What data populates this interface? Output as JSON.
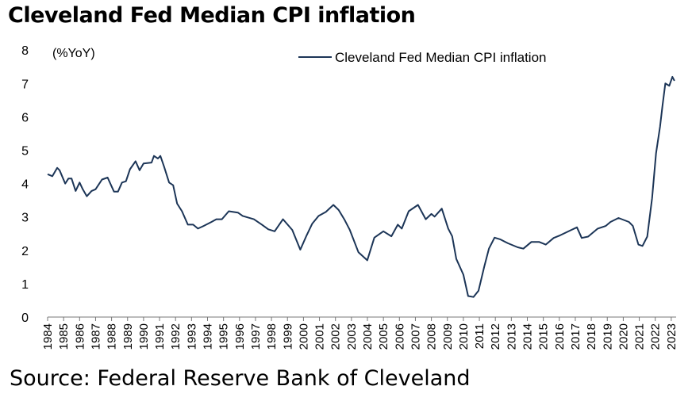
{
  "chart_data": {
    "type": "line",
    "title": "Cleveland Fed Median CPI inflation",
    "ylabel": "(%YoY)",
    "xlabel": "",
    "ylim": [
      0,
      8
    ],
    "xlim": [
      1984,
      2023.2
    ],
    "yticks": [
      "0",
      "1",
      "2",
      "3",
      "4",
      "5",
      "6",
      "7",
      "8"
    ],
    "xticks": [
      "1984",
      "1985",
      "1986",
      "1987",
      "1988",
      "1989",
      "1990",
      "1991",
      "1992",
      "1993",
      "1994",
      "1995",
      "1996",
      "1997",
      "1998",
      "1999",
      "2000",
      "2001",
      "2002",
      "2003",
      "2004",
      "2005",
      "2006",
      "2007",
      "2008",
      "2009",
      "2010",
      "2011",
      "2012",
      "2013",
      "2014",
      "2015",
      "2016",
      "2017",
      "2018",
      "2019",
      "2020",
      "2021",
      "2022",
      "2023"
    ],
    "legend": "top-right",
    "grid": false,
    "series": [
      {
        "name": "Cleveland Fed Median CPI inflation",
        "color": "#1c3557",
        "points": [
          [
            1984.0,
            4.28
          ],
          [
            1984.3,
            4.22
          ],
          [
            1984.6,
            4.47
          ],
          [
            1984.75,
            4.4
          ],
          [
            1985.1,
            4.0
          ],
          [
            1985.3,
            4.15
          ],
          [
            1985.5,
            4.15
          ],
          [
            1985.75,
            3.78
          ],
          [
            1986.0,
            4.03
          ],
          [
            1986.2,
            3.83
          ],
          [
            1986.45,
            3.62
          ],
          [
            1986.75,
            3.78
          ],
          [
            1987.0,
            3.83
          ],
          [
            1987.4,
            4.12
          ],
          [
            1987.75,
            4.18
          ],
          [
            1988.15,
            3.76
          ],
          [
            1988.4,
            3.76
          ],
          [
            1988.65,
            4.03
          ],
          [
            1988.9,
            4.07
          ],
          [
            1989.15,
            4.43
          ],
          [
            1989.5,
            4.67
          ],
          [
            1989.75,
            4.4
          ],
          [
            1990.0,
            4.6
          ],
          [
            1990.5,
            4.63
          ],
          [
            1990.65,
            4.83
          ],
          [
            1990.9,
            4.75
          ],
          [
            1991.05,
            4.83
          ],
          [
            1991.28,
            4.51
          ],
          [
            1991.6,
            4.03
          ],
          [
            1991.85,
            3.95
          ],
          [
            1992.1,
            3.4
          ],
          [
            1992.4,
            3.17
          ],
          [
            1992.77,
            2.77
          ],
          [
            1993.1,
            2.77
          ],
          [
            1993.4,
            2.65
          ],
          [
            1993.75,
            2.73
          ],
          [
            1994.25,
            2.85
          ],
          [
            1994.55,
            2.93
          ],
          [
            1994.9,
            2.93
          ],
          [
            1995.33,
            3.17
          ],
          [
            1995.9,
            3.13
          ],
          [
            1996.2,
            3.03
          ],
          [
            1996.9,
            2.93
          ],
          [
            1997.4,
            2.77
          ],
          [
            1997.8,
            2.63
          ],
          [
            1998.2,
            2.57
          ],
          [
            1998.72,
            2.93
          ],
          [
            1999.3,
            2.61
          ],
          [
            1999.8,
            2.02
          ],
          [
            2000.2,
            2.45
          ],
          [
            2000.55,
            2.8
          ],
          [
            2000.95,
            3.03
          ],
          [
            2001.4,
            3.15
          ],
          [
            2001.87,
            3.36
          ],
          [
            2002.2,
            3.21
          ],
          [
            2002.55,
            2.93
          ],
          [
            2002.9,
            2.61
          ],
          [
            2003.44,
            1.94
          ],
          [
            2003.99,
            1.7
          ],
          [
            2004.43,
            2.38
          ],
          [
            2005.0,
            2.57
          ],
          [
            2005.5,
            2.42
          ],
          [
            2005.9,
            2.77
          ],
          [
            2006.15,
            2.65
          ],
          [
            2006.58,
            3.17
          ],
          [
            2007.16,
            3.36
          ],
          [
            2007.65,
            2.93
          ],
          [
            2008.0,
            3.09
          ],
          [
            2008.2,
            3.01
          ],
          [
            2008.65,
            3.25
          ],
          [
            2009.05,
            2.65
          ],
          [
            2009.3,
            2.42
          ],
          [
            2009.56,
            1.74
          ],
          [
            2010.0,
            1.27
          ],
          [
            2010.3,
            0.63
          ],
          [
            2010.63,
            0.6
          ],
          [
            2010.95,
            0.79
          ],
          [
            2011.3,
            1.5
          ],
          [
            2011.6,
            2.05
          ],
          [
            2011.95,
            2.38
          ],
          [
            2012.3,
            2.33
          ],
          [
            2012.8,
            2.21
          ],
          [
            2013.4,
            2.09
          ],
          [
            2013.75,
            2.05
          ],
          [
            2014.25,
            2.25
          ],
          [
            2014.75,
            2.25
          ],
          [
            2015.15,
            2.17
          ],
          [
            2015.65,
            2.37
          ],
          [
            2016.05,
            2.45
          ],
          [
            2016.75,
            2.61
          ],
          [
            2017.1,
            2.69
          ],
          [
            2017.4,
            2.37
          ],
          [
            2017.8,
            2.41
          ],
          [
            2018.4,
            2.65
          ],
          [
            2018.9,
            2.73
          ],
          [
            2019.2,
            2.85
          ],
          [
            2019.7,
            2.97
          ],
          [
            2020.35,
            2.85
          ],
          [
            2020.6,
            2.73
          ],
          [
            2020.95,
            2.17
          ],
          [
            2021.2,
            2.13
          ],
          [
            2021.5,
            2.41
          ],
          [
            2021.8,
            3.56
          ],
          [
            2022.05,
            4.91
          ],
          [
            2022.3,
            5.7
          ],
          [
            2022.45,
            6.33
          ],
          [
            2022.63,
            7.0
          ],
          [
            2022.88,
            6.93
          ],
          [
            2023.07,
            7.2
          ],
          [
            2023.2,
            7.08
          ]
        ]
      }
    ]
  },
  "source": "Source: Federal Reserve Bank of Cleveland"
}
